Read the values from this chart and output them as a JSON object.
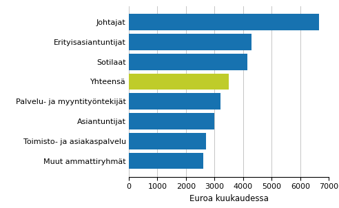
{
  "categories": [
    "Muut ammattiryhmät",
    "Toimisto- ja asiakaspalvelu",
    "Asiantuntijat",
    "Palvelu- ja myyntityöntekijät",
    "Yhteensä",
    "Sotilaat",
    "Erityisasiantuntijat",
    "Johtajat"
  ],
  "values": [
    2600,
    2700,
    3000,
    3200,
    3500,
    4150,
    4300,
    6650
  ],
  "colors": [
    "#1772b0",
    "#1772b0",
    "#1772b0",
    "#1772b0",
    "#bfcc2a",
    "#1772b0",
    "#1772b0",
    "#1772b0"
  ],
  "xlabel": "Euroa kuukaudessa",
  "xlim": [
    0,
    7000
  ],
  "xticks": [
    0,
    1000,
    2000,
    3000,
    4000,
    5000,
    6000,
    7000
  ],
  "xlabel_fontsize": 8.5,
  "tick_fontsize": 8,
  "ylabel_fontsize": 8,
  "bar_height": 0.82,
  "background_color": "#ffffff",
  "grid_color": "#bbbbbb"
}
